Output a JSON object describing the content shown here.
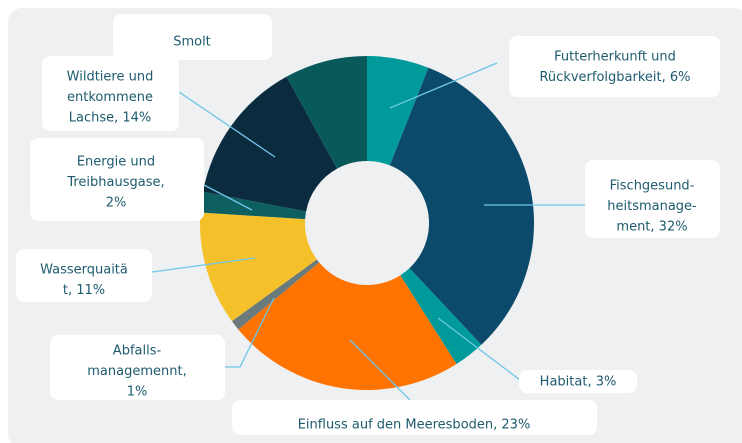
{
  "chart_data": {
    "type": "donut",
    "labels": [
      [
        "Futterherkunft und",
        "Rückverfolgbarkeit, 6%"
      ],
      [
        "Fischgesund-",
        "heitsmanage-",
        "ment, 32%"
      ],
      [
        "Habitat, 3%"
      ],
      [
        "Einfluss auf den Meeresboden, 23%"
      ],
      [
        "Abfalls-",
        "managemennt,",
        "1%"
      ],
      [
        "Wasserquaitä",
        "t, 11%"
      ],
      [
        "Energie und",
        "Treibhausgase,",
        "2%"
      ],
      [
        "Wildtiere und",
        "entkommene",
        "Lachse, 14%"
      ],
      [
        "Smolt"
      ]
    ],
    "values": [
      6,
      32,
      3,
      23,
      1,
      11,
      2,
      14,
      8
    ],
    "colors": [
      "#009a9a",
      "#0b4a6b",
      "#009a9a",
      "#ff7300",
      "#6b7b7b",
      "#f5c12a",
      "#0e5f5f",
      "#0b2b3f",
      "#07595a"
    ]
  }
}
